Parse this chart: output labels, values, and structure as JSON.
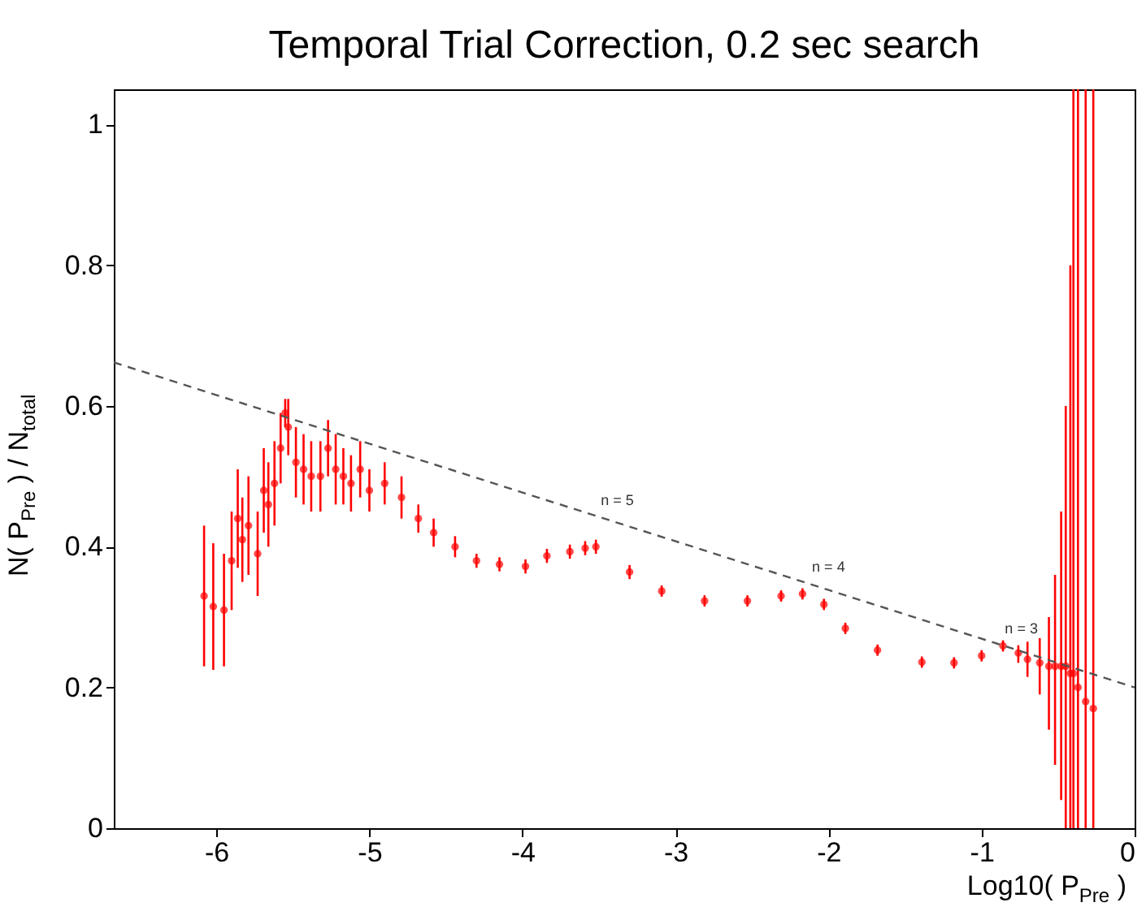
{
  "chart_data": {
    "type": "scatter",
    "title": "Temporal Trial Correction, 0.2 sec search",
    "xlabel": "Log10( P$_{Pre}$ )",
    "ylabel": "N( P$_{Pre}$ ) / N$_{total}$",
    "xlim": [
      -6.67,
      0
    ],
    "ylim": [
      0,
      1.05
    ],
    "xticks": [
      -6,
      -5,
      -4,
      -3,
      -2,
      -1,
      0
    ],
    "yticks": [
      0,
      0.2,
      0.4,
      0.6,
      0.8,
      1
    ],
    "grid": false,
    "annotations": [
      {
        "text": "n = 5",
        "x": -3.38,
        "y": 0.434
      },
      {
        "text": "n = 4",
        "x": -2.0,
        "y": 0.339
      },
      {
        "text": "n = 3",
        "x": -0.74,
        "y": 0.251
      }
    ],
    "series": [
      {
        "color": "#ff0000",
        "marker": "circle",
        "x": [
          -6.08,
          -6.02,
          -5.95,
          -5.9,
          -5.86,
          -5.83,
          -5.79,
          -5.73,
          -5.69,
          -5.66,
          -5.62,
          -5.58,
          -5.55,
          -5.53,
          -5.48,
          -5.43,
          -5.38,
          -5.32,
          -5.27,
          -5.22,
          -5.17,
          -5.12,
          -5.06,
          -5.0,
          -4.9,
          -4.79,
          -4.68,
          -4.58,
          -4.44,
          -4.3,
          -4.15,
          -3.98,
          -3.84,
          -3.69,
          -3.59,
          -3.52,
          -3.3,
          -3.09,
          -2.81,
          -2.53,
          -2.31,
          -2.17,
          -2.03,
          -1.89,
          -1.68,
          -1.39,
          -1.18,
          -1.0,
          -0.86,
          -0.76,
          -0.7,
          -0.62,
          -0.56,
          -0.52,
          -0.48,
          -0.45,
          -0.42,
          -0.4,
          -0.37,
          -0.32,
          -0.27
        ],
        "values": [
          0.33,
          0.315,
          0.31,
          0.38,
          0.44,
          0.41,
          0.43,
          0.39,
          0.48,
          0.46,
          0.49,
          0.54,
          0.59,
          0.57,
          0.52,
          0.51,
          0.5,
          0.5,
          0.54,
          0.51,
          0.5,
          0.49,
          0.51,
          0.48,
          0.49,
          0.47,
          0.44,
          0.42,
          0.4,
          0.38,
          0.375,
          0.372,
          0.387,
          0.393,
          0.398,
          0.4,
          0.364,
          0.337,
          0.323,
          0.323,
          0.33,
          0.333,
          0.318,
          0.284,
          0.253,
          0.236,
          0.235,
          0.245,
          0.259,
          0.249,
          0.24,
          0.235,
          0.23,
          0.23,
          0.23,
          0.23,
          0.22,
          0.22,
          0.2,
          0.18,
          0.17
        ],
        "errors": [
          0.1,
          0.09,
          0.08,
          0.07,
          0.07,
          0.06,
          0.07,
          0.06,
          0.06,
          0.06,
          0.06,
          0.05,
          0.02,
          0.04,
          0.05,
          0.05,
          0.05,
          0.05,
          0.04,
          0.05,
          0.04,
          0.04,
          0.04,
          0.03,
          0.03,
          0.03,
          0.02,
          0.02,
          0.015,
          0.01,
          0.01,
          0.01,
          0.01,
          0.01,
          0.01,
          0.01,
          0.01,
          0.008,
          0.008,
          0.008,
          0.008,
          0.008,
          0.008,
          0.008,
          0.008,
          0.008,
          0.008,
          0.008,
          0.008,
          [
            0.235,
            0.26
          ],
          [
            0.215,
            0.265
          ],
          [
            0.19,
            0.27
          ],
          [
            0.14,
            0.3
          ],
          [
            0.09,
            0.36
          ],
          [
            0.04,
            0.45
          ],
          [
            0,
            0.6
          ],
          [
            0,
            0.8
          ],
          [
            0,
            1.05
          ],
          [
            0,
            1.05
          ],
          [
            0,
            1.05
          ],
          [
            0,
            1.05
          ]
        ]
      },
      {
        "type": "line",
        "color": "#555555",
        "line_style": "dashed",
        "x": [
          -6.67,
          0
        ],
        "values": [
          0.662,
          0.2
        ]
      }
    ]
  }
}
